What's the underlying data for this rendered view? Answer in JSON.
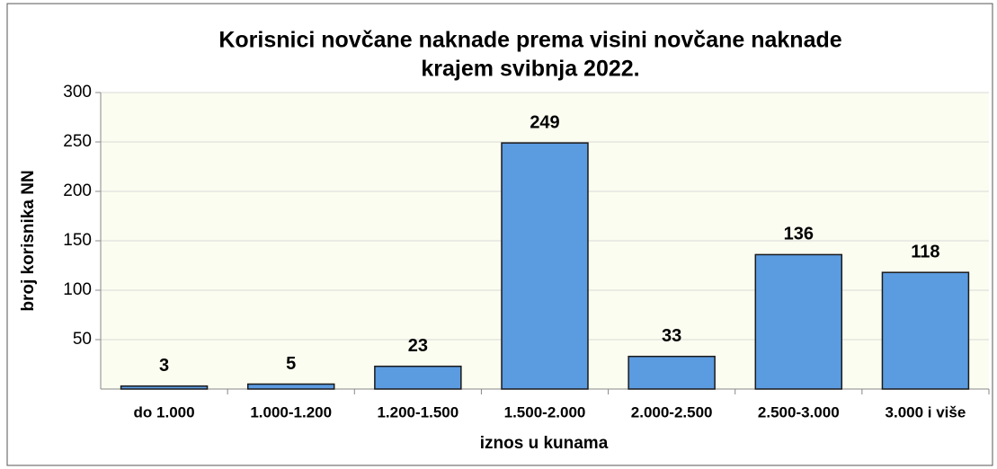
{
  "chart_data": {
    "type": "bar",
    "title": [
      "Korisnici novčane naknade prema visini novčane naknade",
      "krajem svibnja 2022."
    ],
    "x_label": "iznos u kunama",
    "y_label": "broj korisnika NN",
    "categories": [
      "do 1.000",
      "1.000-1.200",
      "1.200-1.500",
      "1.500-2.000",
      "2.000-2.500",
      "2.500-3.000",
      "3.000 i više"
    ],
    "values": [
      3,
      5,
      23,
      249,
      33,
      136,
      118
    ],
    "color": "#5b9be0",
    "ylim": [
      0,
      300
    ],
    "yticks": [
      50,
      100,
      150,
      200,
      250,
      300
    ],
    "grid": true
  }
}
